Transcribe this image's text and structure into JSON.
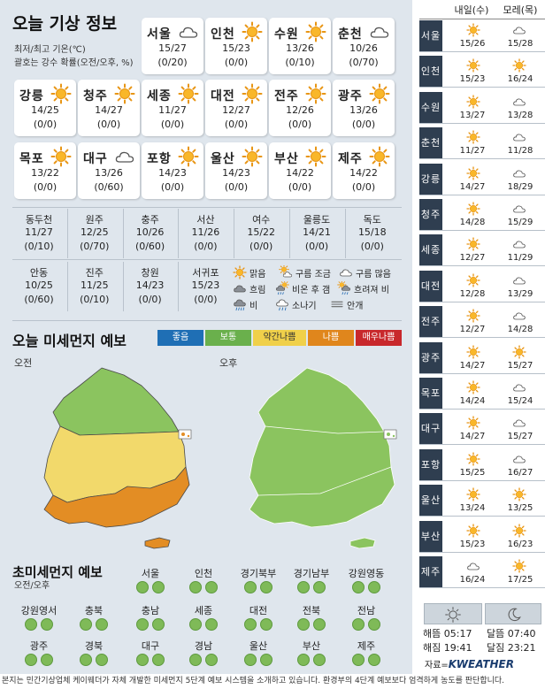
{
  "header": {
    "title": "오늘 기상 정보",
    "sub1": "최저/최고 기온(℃)",
    "sub2": "괄호는 강수 확률(오전/오후, %)"
  },
  "cards": [
    {
      "name": "서울",
      "temp": "15/27",
      "rain": "(0/20)",
      "icon": "cloud-icon"
    },
    {
      "name": "인천",
      "temp": "15/23",
      "rain": "(0/0)",
      "icon": "sun-icon"
    },
    {
      "name": "수원",
      "temp": "13/26",
      "rain": "(0/10)",
      "icon": "sun-icon"
    },
    {
      "name": "춘천",
      "temp": "10/26",
      "rain": "(0/70)",
      "icon": "cloud-icon"
    },
    {
      "name": "강릉",
      "temp": "14/25",
      "rain": "(0/0)",
      "icon": "sun-icon"
    },
    {
      "name": "청주",
      "temp": "14/27",
      "rain": "(0/0)",
      "icon": "sun-icon"
    },
    {
      "name": "세종",
      "temp": "11/27",
      "rain": "(0/0)",
      "icon": "sun-icon"
    },
    {
      "name": "대전",
      "temp": "12/27",
      "rain": "(0/0)",
      "icon": "sun-icon"
    },
    {
      "name": "전주",
      "temp": "12/26",
      "rain": "(0/0)",
      "icon": "sun-icon"
    },
    {
      "name": "광주",
      "temp": "13/26",
      "rain": "(0/0)",
      "icon": "sun-icon"
    },
    {
      "name": "목포",
      "temp": "13/22",
      "rain": "(0/0)",
      "icon": "sun-icon"
    },
    {
      "name": "대구",
      "temp": "13/26",
      "rain": "(0/60)",
      "icon": "cloud-icon"
    },
    {
      "name": "포항",
      "temp": "14/23",
      "rain": "(0/0)",
      "icon": "sun-icon"
    },
    {
      "name": "울산",
      "temp": "14/23",
      "rain": "(0/0)",
      "icon": "sun-icon"
    },
    {
      "name": "부산",
      "temp": "14/22",
      "rain": "(0/0)",
      "icon": "sun-icon"
    },
    {
      "name": "제주",
      "temp": "14/22",
      "rain": "(0/0)",
      "icon": "sun-icon"
    }
  ],
  "table1": [
    {
      "name": "동두천",
      "temp": "11/27",
      "rain": "(0/10)"
    },
    {
      "name": "원주",
      "temp": "12/25",
      "rain": "(0/70)"
    },
    {
      "name": "충주",
      "temp": "10/26",
      "rain": "(0/60)"
    },
    {
      "name": "서산",
      "temp": "11/26",
      "rain": "(0/0)"
    },
    {
      "name": "여수",
      "temp": "15/22",
      "rain": "(0/0)"
    },
    {
      "name": "울릉도",
      "temp": "14/21",
      "rain": "(0/0)"
    },
    {
      "name": "독도",
      "temp": "15/18",
      "rain": "(0/0)"
    }
  ],
  "table2": [
    {
      "name": "안동",
      "temp": "10/25",
      "rain": "(0/60)"
    },
    {
      "name": "진주",
      "temp": "11/25",
      "rain": "(0/10)"
    },
    {
      "name": "창원",
      "temp": "14/23",
      "rain": "(0/0)"
    },
    {
      "name": "서귀포",
      "temp": "15/23",
      "rain": "(0/0)"
    }
  ],
  "legend": [
    {
      "label": "맑음",
      "icon": "sun-icon"
    },
    {
      "label": "구름 조금",
      "icon": "sun-cloud-icon"
    },
    {
      "label": "구름 많음",
      "icon": "cloud-icon"
    },
    {
      "label": "흐림",
      "icon": "dark-cloud-icon"
    },
    {
      "label": "비온 후 갬",
      "icon": "rain-then-clear-icon"
    },
    {
      "label": "흐려져 비",
      "icon": "cloudy-then-rain-icon"
    },
    {
      "label": "비",
      "icon": "rain-icon"
    },
    {
      "label": "소나기",
      "icon": "shower-icon"
    },
    {
      "label": "안개",
      "icon": "fog-icon"
    }
  ],
  "dust": {
    "title": "오늘 미세먼지 예보",
    "am": "오전",
    "pm": "오후",
    "scale": [
      {
        "label": "좋음",
        "color": "#1f6fb5"
      },
      {
        "label": "보통",
        "color": "#6ab04c"
      },
      {
        "label": "약간나쁨",
        "color": "#f0d04a"
      },
      {
        "label": "나쁨",
        "color": "#e0861c"
      },
      {
        "label": "매우나쁨",
        "color": "#c8282c"
      }
    ]
  },
  "ultra": {
    "title": "초미세먼지 예보",
    "sub": "오전/오후",
    "regions": [
      "서울",
      "인천",
      "경기북부",
      "경기남부",
      "강원영동",
      "강원영서",
      "충북",
      "충남",
      "세종",
      "대전",
      "전북",
      "전남",
      "광주",
      "경북",
      "대구",
      "경남",
      "울산",
      "부산",
      "제주"
    ]
  },
  "right": {
    "col1": "내일(수)",
    "col2": "모레(목)",
    "rows": [
      {
        "city": "서울",
        "d1": "15/26",
        "d2": "15/28",
        "i1": "sun-icon",
        "i2": "cloud-icon"
      },
      {
        "city": "인천",
        "d1": "15/23",
        "d2": "16/24",
        "i1": "sun-icon",
        "i2": "sun-icon"
      },
      {
        "city": "수원",
        "d1": "13/27",
        "d2": "13/28",
        "i1": "sun-icon",
        "i2": "cloud-icon"
      },
      {
        "city": "춘천",
        "d1": "11/27",
        "d2": "11/28",
        "i1": "sun-icon",
        "i2": "cloud-icon"
      },
      {
        "city": "강릉",
        "d1": "14/27",
        "d2": "18/29",
        "i1": "sun-icon",
        "i2": "cloud-icon"
      },
      {
        "city": "청주",
        "d1": "14/28",
        "d2": "15/29",
        "i1": "sun-icon",
        "i2": "cloud-icon"
      },
      {
        "city": "세종",
        "d1": "12/27",
        "d2": "11/29",
        "i1": "sun-icon",
        "i2": "cloud-icon"
      },
      {
        "city": "대전",
        "d1": "12/28",
        "d2": "13/29",
        "i1": "sun-icon",
        "i2": "cloud-icon"
      },
      {
        "city": "전주",
        "d1": "12/27",
        "d2": "14/28",
        "i1": "sun-icon",
        "i2": "cloud-icon"
      },
      {
        "city": "광주",
        "d1": "14/27",
        "d2": "15/27",
        "i1": "sun-icon",
        "i2": "sun-icon"
      },
      {
        "city": "목포",
        "d1": "14/24",
        "d2": "15/24",
        "i1": "sun-icon",
        "i2": "cloud-icon"
      },
      {
        "city": "대구",
        "d1": "14/27",
        "d2": "15/27",
        "i1": "sun-icon",
        "i2": "cloud-icon"
      },
      {
        "city": "포항",
        "d1": "15/25",
        "d2": "16/27",
        "i1": "sun-icon",
        "i2": "cloud-icon"
      },
      {
        "city": "울산",
        "d1": "13/24",
        "d2": "13/25",
        "i1": "sun-icon",
        "i2": "sun-icon"
      },
      {
        "city": "부산",
        "d1": "15/23",
        "d2": "16/23",
        "i1": "sun-icon",
        "i2": "sun-icon"
      },
      {
        "city": "제주",
        "d1": "16/24",
        "d2": "17/25",
        "i1": "cloud-icon",
        "i2": "sun-icon"
      }
    ],
    "sunrise": "해뜸 05:17",
    "sunset": "해짐 19:41",
    "moonrise": "달뜸 07:40",
    "moonset": "달짐 23:21",
    "source_label": "자료=",
    "source": "KWEATHER"
  },
  "footer": "본지는 민간기상업체 케이웨더가 자체 개발한 미세먼지 5단계 예보 시스템을 소개하고 있습니다. 환경부의 4단계 예보보다 엄격하게 농도를 판단합니다."
}
